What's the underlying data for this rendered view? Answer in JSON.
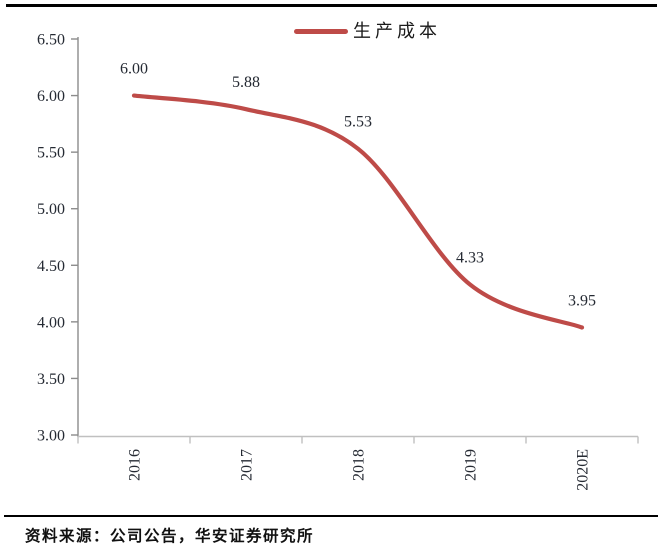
{
  "legend": {
    "label": "生产成本",
    "swatch_color": "#be4b48"
  },
  "source": {
    "text": "资料来源：公司公告，华安证券研究所"
  },
  "chart_data": {
    "type": "line",
    "title": "",
    "categories": [
      "2016",
      "2017",
      "2018",
      "2019",
      "2020E"
    ],
    "series": [
      {
        "name": "生产成本",
        "color": "#be4b48",
        "values": [
          6.0,
          5.88,
          5.53,
          4.33,
          3.95
        ]
      }
    ],
    "data_labels": [
      "6.00",
      "5.88",
      "5.53",
      "4.33",
      "3.95"
    ],
    "ylim": [
      3.0,
      6.5
    ],
    "ytick_step": 0.5,
    "ytick_labels": [
      "3.00",
      "3.50",
      "4.00",
      "4.50",
      "5.00",
      "5.50",
      "6.00",
      "6.50"
    ],
    "xlabel": "",
    "ylabel": "",
    "grid": false,
    "smooth": true,
    "legend_position": "top-center",
    "x_tick_label_rotation_degrees": 90
  },
  "colors": {
    "series_line": "#be4b48",
    "y_axis": "#8c8c8c",
    "x_axis": "#c0c0c0",
    "tick_label_text": "#252a33",
    "data_label_text": "#252a33",
    "rule": "#000000",
    "background": "#ffffff"
  }
}
